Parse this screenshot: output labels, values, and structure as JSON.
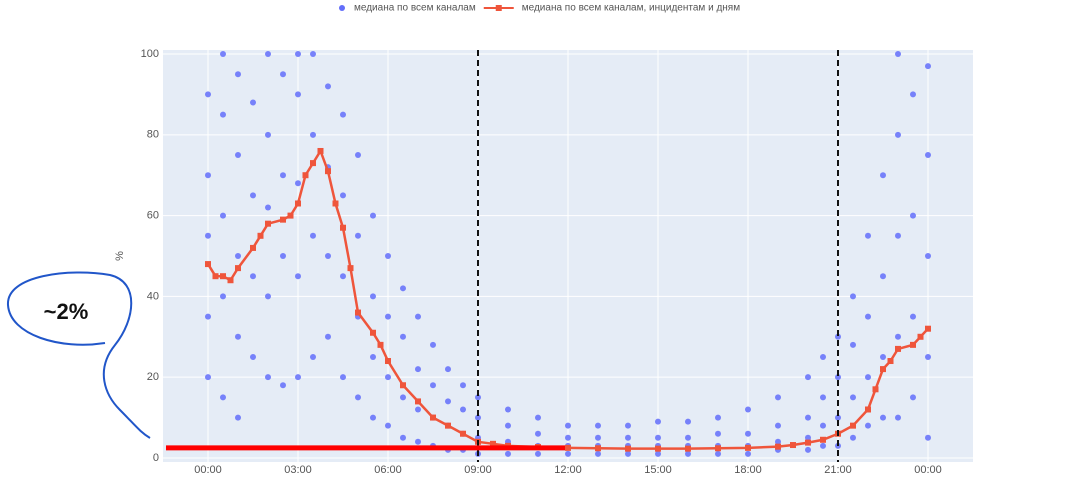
{
  "chart_data": {
    "type": "scatter",
    "y_label": "%",
    "legend": "top",
    "grid": true,
    "xlim": [
      -1.5,
      25.5
    ],
    "ylim": [
      -1,
      101
    ],
    "xticks": [
      {
        "value": 0,
        "label": "00:00"
      },
      {
        "value": 3,
        "label": "03:00"
      },
      {
        "value": 6,
        "label": "06:00"
      },
      {
        "value": 9,
        "label": "09:00"
      },
      {
        "value": 12,
        "label": "12:00"
      },
      {
        "value": 15,
        "label": "15:00"
      },
      {
        "value": 18,
        "label": "18:00"
      },
      {
        "value": 21,
        "label": "21:00"
      },
      {
        "value": 24,
        "label": "00:00"
      }
    ],
    "yticks": [
      0,
      20,
      40,
      60,
      80,
      100
    ],
    "vlines": [
      9,
      21
    ],
    "annotation": {
      "text": "~2%",
      "color": "#2156c9"
    },
    "annotation_line": {
      "y": 2.5,
      "x": [
        -1.4,
        11.9
      ],
      "color": "#ff0000"
    },
    "series": [
      {
        "name": "медиана по всем каналам",
        "color": "#636efa",
        "mode": "markers",
        "x": [
          0,
          0,
          0,
          0,
          0,
          0.5,
          0.5,
          0.5,
          0.5,
          0.5,
          1,
          1,
          1,
          1,
          1,
          1.5,
          1.5,
          1.5,
          1.5,
          2,
          2,
          2,
          2,
          2,
          2.5,
          2.5,
          2.5,
          2.5,
          3,
          3,
          3,
          3,
          3,
          3.5,
          3.5,
          3.5,
          3.5,
          4,
          4,
          4,
          4,
          4.5,
          4.5,
          4.5,
          4.5,
          5,
          5,
          5,
          5,
          5.5,
          5.5,
          5.5,
          5.5,
          6,
          6,
          6,
          6,
          6.5,
          6.5,
          6.5,
          6.5,
          7,
          7,
          7,
          7,
          7.5,
          7.5,
          7.5,
          7.5,
          8,
          8,
          8,
          8,
          8.5,
          8.5,
          8.5,
          8.5,
          9,
          9,
          9,
          9,
          10,
          10,
          10,
          10,
          11,
          11,
          11,
          11,
          12,
          12,
          12,
          12,
          13,
          13,
          13,
          13,
          14,
          14,
          14,
          14,
          15,
          15,
          15,
          15,
          16,
          16,
          16,
          16,
          17,
          17,
          17,
          17,
          18,
          18,
          18,
          18,
          19,
          19,
          19,
          19,
          20,
          20,
          20,
          20,
          20.5,
          20.5,
          20.5,
          20.5,
          21,
          21,
          21,
          21,
          21.5,
          21.5,
          21.5,
          21.5,
          22,
          22,
          22,
          22,
          22.5,
          22.5,
          22.5,
          22.5,
          23,
          23,
          23,
          23,
          23,
          23.5,
          23.5,
          23.5,
          23.5,
          24,
          24,
          24,
          24,
          24
        ],
        "values": [
          20,
          35,
          55,
          70,
          90,
          15,
          40,
          60,
          85,
          100,
          10,
          30,
          50,
          75,
          95,
          25,
          45,
          65,
          88,
          20,
          40,
          62,
          80,
          100,
          18,
          50,
          70,
          95,
          20,
          45,
          68,
          90,
          100,
          25,
          55,
          80,
          100,
          30,
          50,
          72,
          92,
          20,
          45,
          65,
          85,
          15,
          35,
          55,
          75,
          10,
          25,
          40,
          60,
          8,
          20,
          35,
          50,
          5,
          15,
          30,
          42,
          4,
          12,
          22,
          35,
          3,
          10,
          18,
          28,
          2,
          8,
          14,
          22,
          2,
          6,
          12,
          18,
          1,
          5,
          10,
          15,
          1,
          4,
          8,
          12,
          1,
          3,
          6,
          10,
          1,
          3,
          5,
          8,
          1,
          3,
          5,
          8,
          1,
          3,
          5,
          8,
          1,
          3,
          5,
          9,
          1,
          3,
          5,
          9,
          1,
          3,
          6,
          10,
          1,
          3,
          6,
          12,
          2,
          4,
          8,
          15,
          2,
          5,
          10,
          20,
          3,
          8,
          15,
          25,
          3,
          10,
          20,
          30,
          5,
          15,
          28,
          40,
          8,
          20,
          35,
          55,
          10,
          25,
          45,
          70,
          10,
          30,
          55,
          80,
          100,
          15,
          35,
          60,
          90,
          5,
          25,
          50,
          75,
          97
        ]
      },
      {
        "name": "медиана по всем каналам, инцидентам и дням",
        "color": "#ef553b",
        "mode": "lines+markers",
        "x": [
          0,
          0.25,
          0.5,
          0.75,
          1,
          1.5,
          1.75,
          2,
          2.5,
          2.75,
          3,
          3.25,
          3.5,
          3.75,
          4,
          4.25,
          4.5,
          4.75,
          5,
          5.5,
          5.75,
          6,
          6.5,
          7,
          7.5,
          8,
          8.5,
          9,
          9.5,
          10,
          11,
          12,
          13,
          14,
          15,
          16,
          17,
          18,
          19,
          19.5,
          20,
          20.5,
          21,
          21.5,
          22,
          22.25,
          22.5,
          22.75,
          23,
          23.5,
          23.75,
          24
        ],
        "values": [
          48,
          45,
          45,
          44,
          47,
          52,
          55,
          58,
          59,
          60,
          63,
          70,
          73,
          76,
          71,
          63,
          57,
          47,
          36,
          31,
          28,
          24,
          18,
          14,
          10,
          8,
          6,
          4,
          3.5,
          3,
          2.7,
          2.5,
          2.4,
          2.3,
          2.3,
          2.3,
          2.4,
          2.5,
          2.8,
          3.2,
          3.8,
          4.5,
          6,
          8,
          12,
          17,
          22,
          24,
          27,
          28,
          30,
          32
        ]
      }
    ]
  }
}
